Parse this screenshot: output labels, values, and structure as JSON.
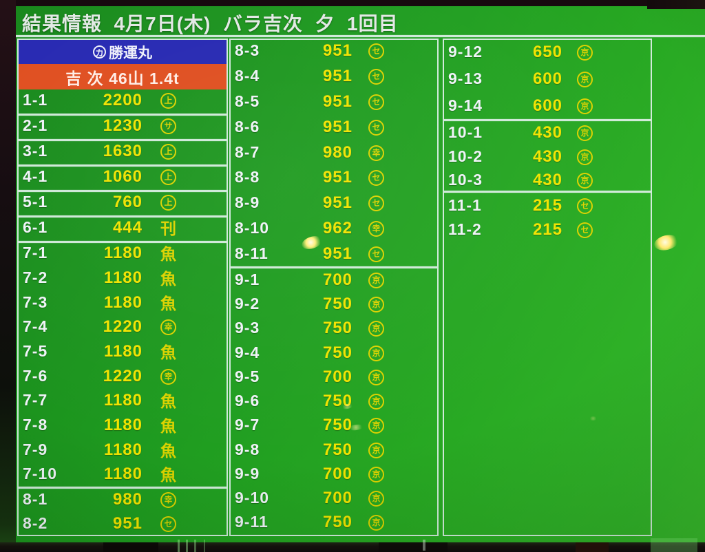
{
  "header": {
    "title": "結果情報  4月7日(木)  バラ吉次  夕  1回目"
  },
  "board": {
    "vessel": {
      "mark": "カ",
      "name": "勝運丸"
    },
    "lot_summary": "吉 次 46山 1.4t",
    "columns": [
      {
        "rows": [
          {
            "id": "1-1",
            "price": "2200",
            "mark": "上",
            "circled": true
          },
          {
            "id": "2-1",
            "price": "1230",
            "mark": "サ",
            "circled": true
          },
          {
            "id": "3-1",
            "price": "1630",
            "mark": "上",
            "circled": true
          },
          {
            "id": "4-1",
            "price": "1060",
            "mark": "上",
            "circled": true
          },
          {
            "id": "5-1",
            "price": "760",
            "mark": "上",
            "circled": true
          },
          {
            "id": "6-1",
            "price": "444",
            "mark": "刊",
            "circled": false
          },
          {
            "id": "7-1",
            "price": "1180",
            "mark": "魚",
            "circled": false
          },
          {
            "id": "7-2",
            "price": "1180",
            "mark": "魚",
            "circled": false
          },
          {
            "id": "7-3",
            "price": "1180",
            "mark": "魚",
            "circled": false
          },
          {
            "id": "7-4",
            "price": "1220",
            "mark": "幸",
            "circled": true
          },
          {
            "id": "7-5",
            "price": "1180",
            "mark": "魚",
            "circled": false
          },
          {
            "id": "7-6",
            "price": "1220",
            "mark": "幸",
            "circled": true
          },
          {
            "id": "7-7",
            "price": "1180",
            "mark": "魚",
            "circled": false
          },
          {
            "id": "7-8",
            "price": "1180",
            "mark": "魚",
            "circled": false
          },
          {
            "id": "7-9",
            "price": "1180",
            "mark": "魚",
            "circled": false
          },
          {
            "id": "7-10",
            "price": "1180",
            "mark": "魚",
            "circled": false
          },
          {
            "id": "8-1",
            "price": "980",
            "mark": "幸",
            "circled": true
          },
          {
            "id": "8-2",
            "price": "951",
            "mark": "セ",
            "circled": true
          }
        ]
      },
      {
        "rows": [
          {
            "id": "8-3",
            "price": "951",
            "mark": "セ",
            "circled": true
          },
          {
            "id": "8-4",
            "price": "951",
            "mark": "セ",
            "circled": true
          },
          {
            "id": "8-5",
            "price": "951",
            "mark": "セ",
            "circled": true
          },
          {
            "id": "8-6",
            "price": "951",
            "mark": "セ",
            "circled": true
          },
          {
            "id": "8-7",
            "price": "980",
            "mark": "幸",
            "circled": true
          },
          {
            "id": "8-8",
            "price": "951",
            "mark": "セ",
            "circled": true
          },
          {
            "id": "8-9",
            "price": "951",
            "mark": "セ",
            "circled": true
          },
          {
            "id": "8-10",
            "price": "962",
            "mark": "幸",
            "circled": true
          },
          {
            "id": "8-11",
            "price": "951",
            "mark": "セ",
            "circled": true
          },
          {
            "id": "9-1",
            "price": "700",
            "mark": "京",
            "circled": true
          },
          {
            "id": "9-2",
            "price": "750",
            "mark": "京",
            "circled": true
          },
          {
            "id": "9-3",
            "price": "750",
            "mark": "京",
            "circled": true
          },
          {
            "id": "9-4",
            "price": "750",
            "mark": "京",
            "circled": true
          },
          {
            "id": "9-5",
            "price": "700",
            "mark": "京",
            "circled": true
          },
          {
            "id": "9-6",
            "price": "750",
            "mark": "京",
            "circled": true
          },
          {
            "id": "9-7",
            "price": "750",
            "mark": "京",
            "circled": true
          },
          {
            "id": "9-8",
            "price": "750",
            "mark": "京",
            "circled": true
          },
          {
            "id": "9-9",
            "price": "700",
            "mark": "京",
            "circled": true
          },
          {
            "id": "9-10",
            "price": "700",
            "mark": "京",
            "circled": true
          },
          {
            "id": "9-11",
            "price": "750",
            "mark": "京",
            "circled": true
          }
        ]
      },
      {
        "rows": [
          {
            "id": "9-12",
            "price": "650",
            "mark": "京",
            "circled": true
          },
          {
            "id": "9-13",
            "price": "600",
            "mark": "京",
            "circled": true
          },
          {
            "id": "9-14",
            "price": "600",
            "mark": "京",
            "circled": true
          },
          {
            "id": "10-1",
            "price": "430",
            "mark": "京",
            "circled": true
          },
          {
            "id": "10-2",
            "price": "430",
            "mark": "京",
            "circled": true
          },
          {
            "id": "10-3",
            "price": "430",
            "mark": "京",
            "circled": true
          },
          {
            "id": "11-1",
            "price": "215",
            "mark": "セ",
            "circled": true
          },
          {
            "id": "11-2",
            "price": "215",
            "mark": "セ",
            "circled": true
          }
        ]
      }
    ]
  },
  "colors": {
    "screen_green": "#28a923",
    "price_yellow": "#f1e300",
    "id_white": "#eff3f7",
    "vessel_blue": "#2628b2",
    "lot_orange": "#df4e1f",
    "grid_line": "#e2f2ec"
  }
}
